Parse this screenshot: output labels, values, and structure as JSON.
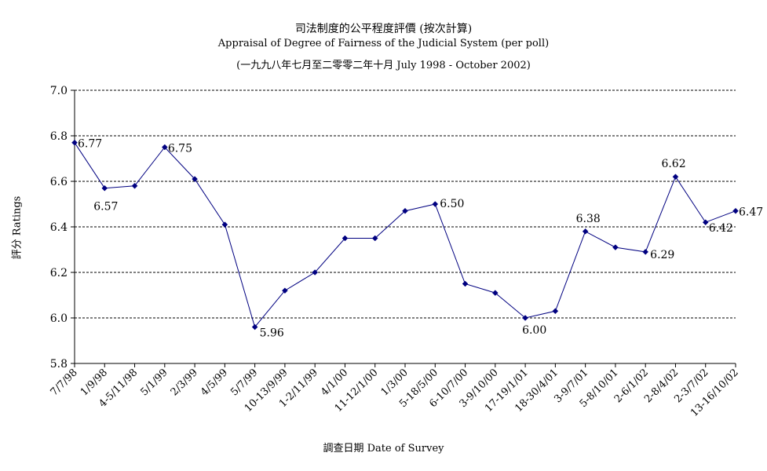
{
  "title": "司法制度的公平程度評價 (按次計算)",
  "subtitle": "Appraisal of Degree of Fairness of the Judicial System (per poll)",
  "subtitle2": "(一九九八年七月至二零零二年十月 July 1998 - October 2002)",
  "colors": {
    "series": "#000080",
    "grid": "#000000",
    "axis": "#000000"
  },
  "chart_data": {
    "type": "line",
    "title": "司法制度的公平程度評價 (按次計算)",
    "subtitle": "Appraisal of Degree of Fairness of the Judicial System (per poll)",
    "xlabel": "調查日期 Date of Survey",
    "ylabel": "評分 Ratings",
    "ylim": [
      5.8,
      7.0
    ],
    "yticks": [
      "5.8",
      "6.0",
      "6.2",
      "6.4",
      "6.6",
      "6.8",
      "7.0"
    ],
    "grid": "horizontal dashed",
    "categories": [
      "7/7/98",
      "1/9/98",
      "4-5/11/98",
      "5/1/99",
      "2/3/99",
      "4/5/99",
      "5/7/99",
      "10-13/9/99",
      "1-2/11/99",
      "4/1/00",
      "11-12/1/00",
      "1/3/00",
      "5-18/5/00",
      "6-10/7/00",
      "3-9/10/00",
      "17-19/1/01",
      "18-30/4/01",
      "3-9/7/01",
      "5-8/10/01",
      "2-6/1/02",
      "2-8/4/02",
      "2-3/7/02",
      "13-16/10/02"
    ],
    "values": [
      6.77,
      6.57,
      6.58,
      6.75,
      6.61,
      6.41,
      5.96,
      6.12,
      6.2,
      6.35,
      6.35,
      6.47,
      6.5,
      6.15,
      6.11,
      6.0,
      6.03,
      6.38,
      6.31,
      6.29,
      6.62,
      6.42,
      6.47
    ],
    "data_labels": [
      "6.77",
      "6.57",
      "",
      "6.75",
      "",
      "",
      "5.96",
      "",
      "",
      "",
      "",
      "",
      "6.50",
      "",
      "",
      "6.00",
      "",
      "6.38",
      "",
      "6.29",
      "6.62",
      "6.42",
      "6.47"
    ]
  }
}
